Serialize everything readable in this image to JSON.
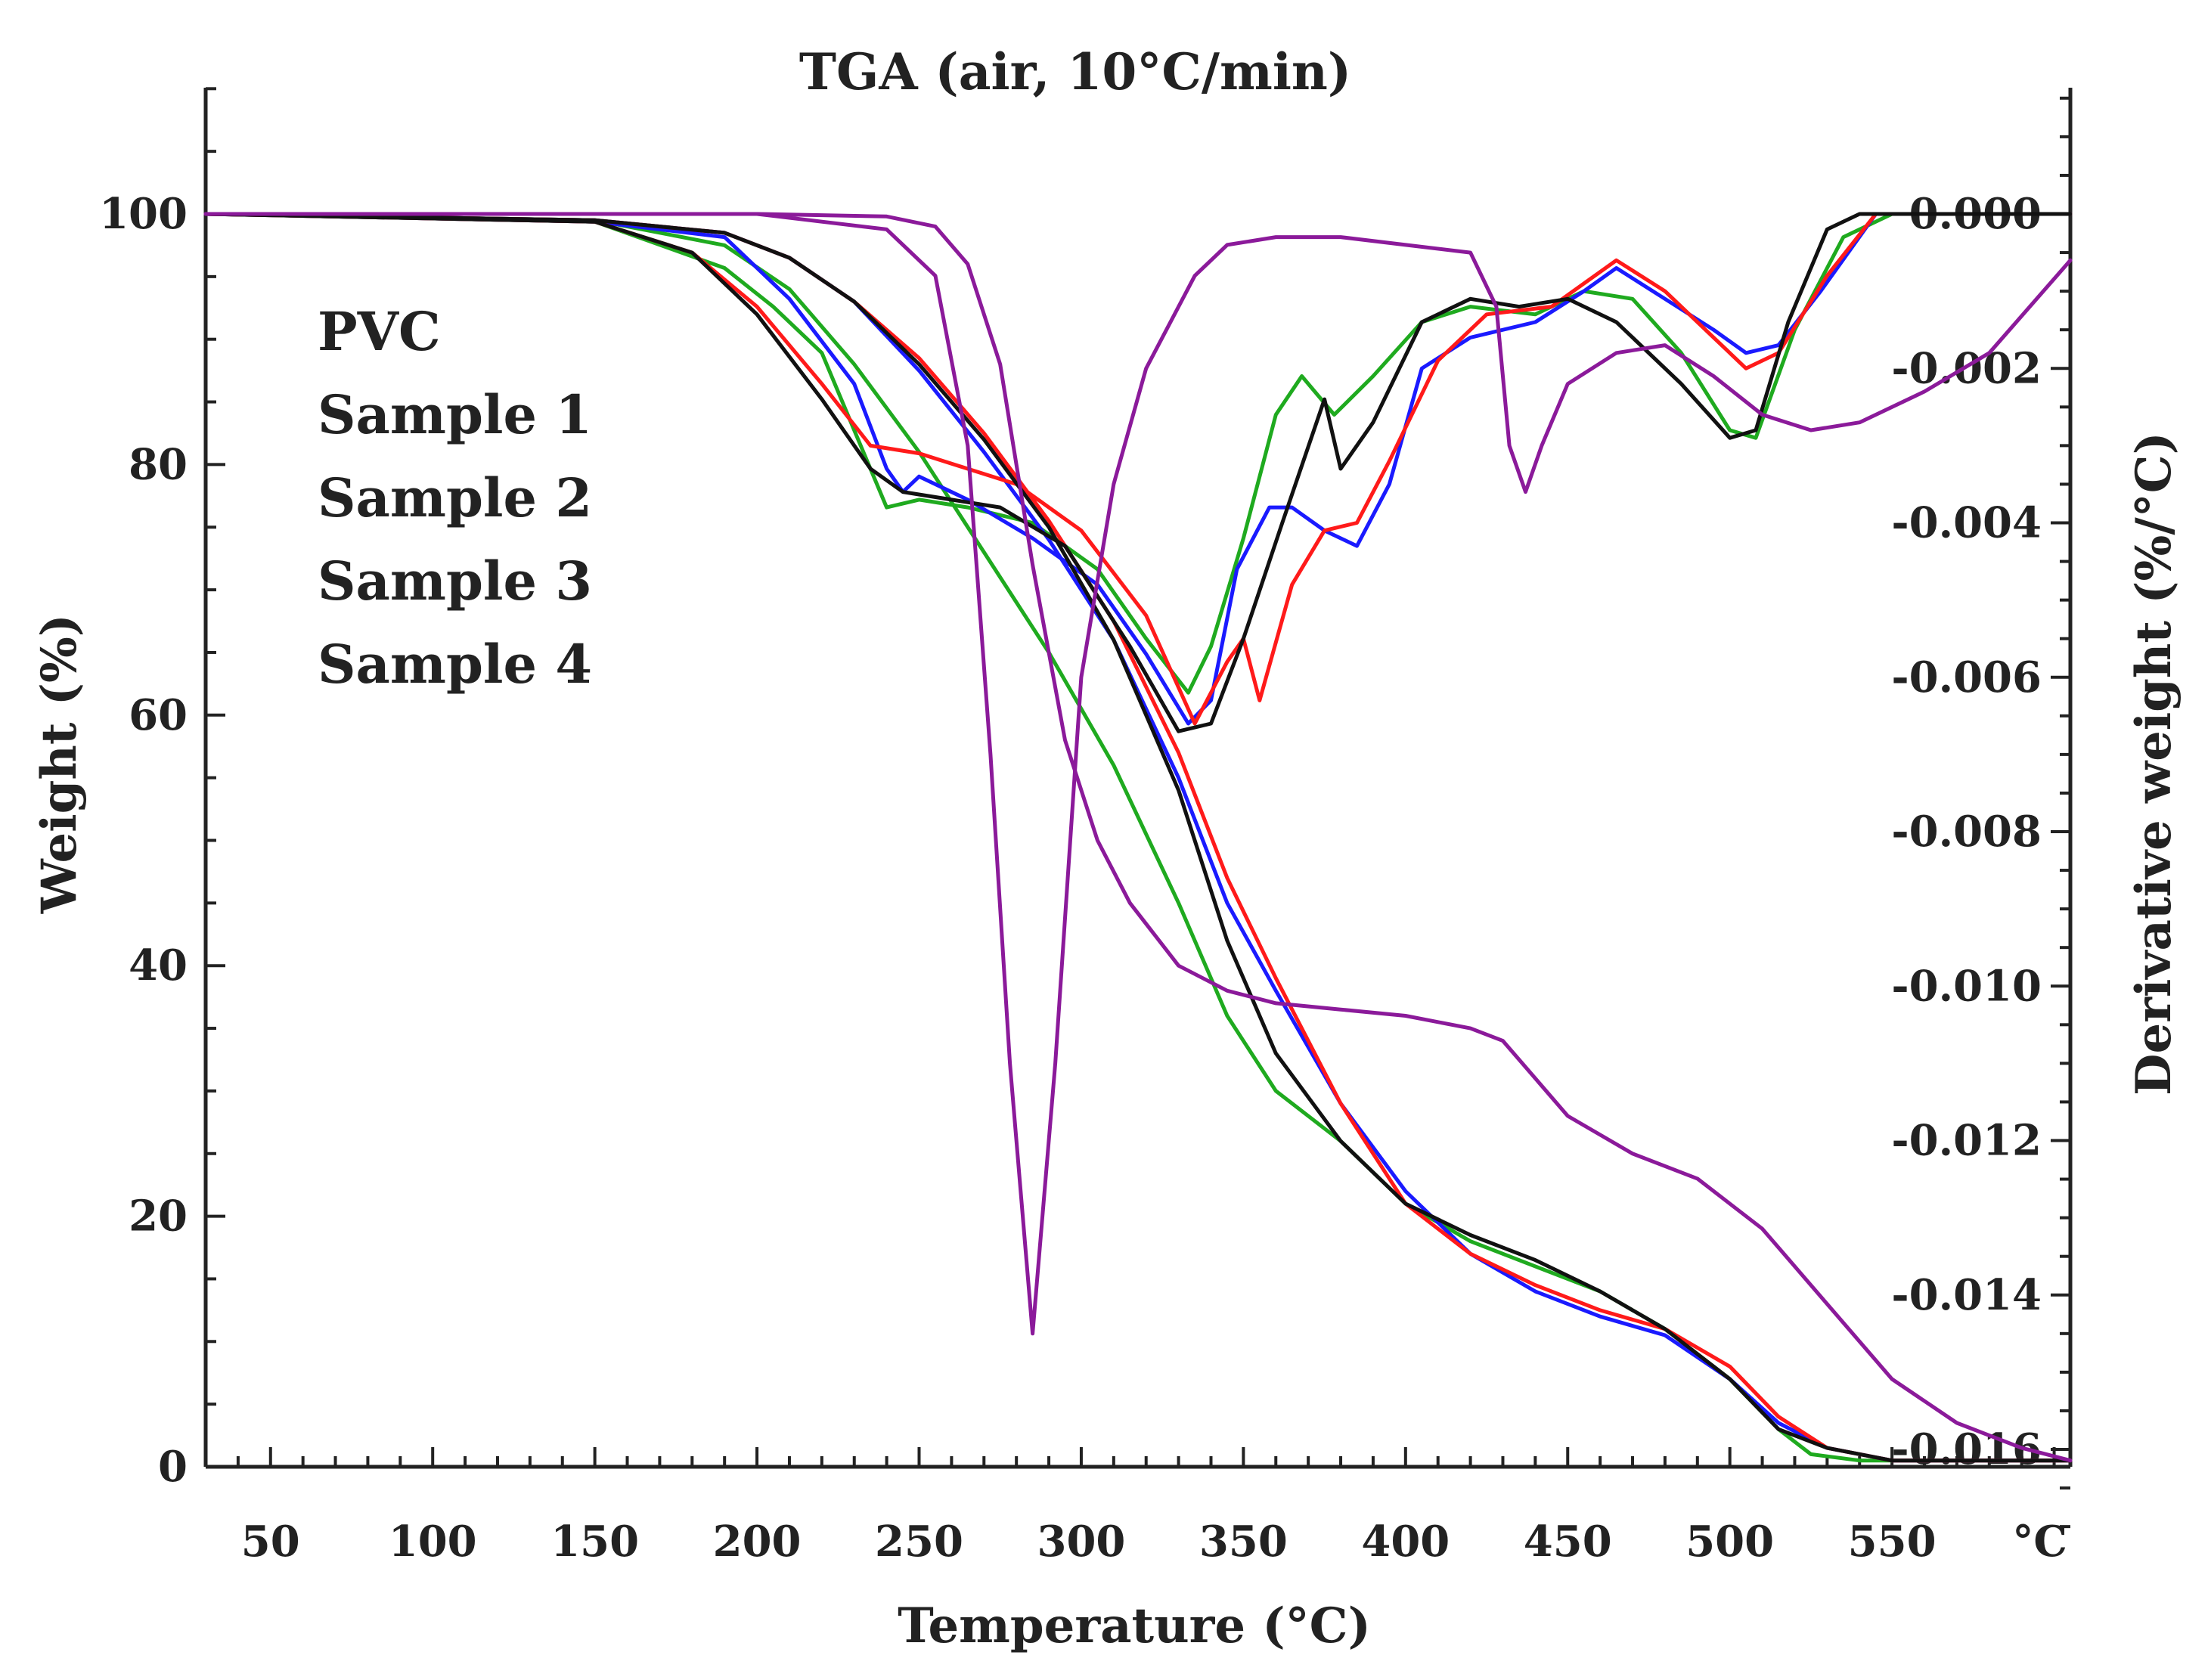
{
  "chart_data": {
    "type": "line",
    "title": "TGA (air, 10°C/min)",
    "xlabel": "Temperature (°C)",
    "ylabel": "Weight (%)",
    "y2label": "Derivative weight (%/°C)",
    "xlim": [
      30,
      605
    ],
    "ylim": [
      0,
      110
    ],
    "y2lim": [
      -0.016,
      0.0016
    ],
    "x_ticks": [
      50,
      100,
      150,
      200,
      250,
      300,
      350,
      400,
      450,
      500,
      550
    ],
    "x_unit_tick": "°C",
    "y_ticks": [
      0,
      20,
      40,
      60,
      80,
      100
    ],
    "y2_ticks": [
      "0.000",
      "-0.002",
      "-0.004",
      "-0.006",
      "-0.008",
      "-0.010",
      "-0.012",
      "-0.014",
      "-0.016"
    ],
    "colors": {
      "PVC": "#8b1a9a",
      "Sample 1": "#1faa1f",
      "Sample 2": "#1a1aff",
      "Sample 3": "#ff1a1a",
      "Sample 4": "#111111"
    },
    "legend": [
      "PVC",
      "Sample 1",
      "Sample 2",
      "Sample 3",
      "Sample 4"
    ],
    "series": [
      {
        "name": "PVC",
        "kind": "weight",
        "axis": "left",
        "points": [
          [
            30,
            100
          ],
          [
            100,
            100
          ],
          [
            200,
            100
          ],
          [
            240,
            99.8
          ],
          [
            255,
            99
          ],
          [
            265,
            96
          ],
          [
            275,
            88
          ],
          [
            285,
            72
          ],
          [
            295,
            58
          ],
          [
            305,
            50
          ],
          [
            315,
            45
          ],
          [
            330,
            40
          ],
          [
            345,
            38
          ],
          [
            360,
            37
          ],
          [
            380,
            36.5
          ],
          [
            400,
            36
          ],
          [
            420,
            35
          ],
          [
            430,
            34
          ],
          [
            440,
            31
          ],
          [
            450,
            28
          ],
          [
            470,
            25
          ],
          [
            490,
            23
          ],
          [
            510,
            19
          ],
          [
            530,
            13
          ],
          [
            550,
            7
          ],
          [
            570,
            3.5
          ],
          [
            590,
            1.5
          ],
          [
            605,
            0.5
          ]
        ]
      },
      {
        "name": "PVC",
        "kind": "derivative",
        "axis": "right",
        "points": [
          [
            30,
            0
          ],
          [
            200,
            0
          ],
          [
            240,
            -0.0002
          ],
          [
            255,
            -0.0008
          ],
          [
            265,
            -0.003
          ],
          [
            272,
            -0.007
          ],
          [
            278,
            -0.011
          ],
          [
            285,
            -0.0145
          ],
          [
            292,
            -0.011
          ],
          [
            300,
            -0.006
          ],
          [
            310,
            -0.0035
          ],
          [
            320,
            -0.002
          ],
          [
            335,
            -0.0008
          ],
          [
            345,
            -0.0004
          ],
          [
            360,
            -0.0003
          ],
          [
            380,
            -0.0003
          ],
          [
            400,
            -0.0004
          ],
          [
            420,
            -0.0005
          ],
          [
            428,
            -0.0012
          ],
          [
            432,
            -0.003
          ],
          [
            437,
            -0.0036
          ],
          [
            442,
            -0.003
          ],
          [
            450,
            -0.0022
          ],
          [
            465,
            -0.0018
          ],
          [
            480,
            -0.0017
          ],
          [
            495,
            -0.0021
          ],
          [
            510,
            -0.0026
          ],
          [
            525,
            -0.0028
          ],
          [
            540,
            -0.0027
          ],
          [
            560,
            -0.0023
          ],
          [
            580,
            -0.0018
          ],
          [
            605,
            -0.0006
          ]
        ]
      },
      {
        "name": "Sample 1",
        "kind": "weight",
        "axis": "left",
        "points": [
          [
            30,
            100
          ],
          [
            150,
            99.5
          ],
          [
            190,
            97.5
          ],
          [
            210,
            94
          ],
          [
            230,
            88
          ],
          [
            250,
            81
          ],
          [
            270,
            73
          ],
          [
            290,
            65
          ],
          [
            310,
            56
          ],
          [
            330,
            45
          ],
          [
            345,
            36
          ],
          [
            360,
            30
          ],
          [
            380,
            26
          ],
          [
            400,
            21
          ],
          [
            420,
            18
          ],
          [
            440,
            16
          ],
          [
            460,
            14
          ],
          [
            480,
            11
          ],
          [
            500,
            7
          ],
          [
            515,
            3
          ],
          [
            525,
            1
          ],
          [
            540,
            0.5
          ],
          [
            605,
            0.5
          ]
        ]
      },
      {
        "name": "Sample 1",
        "kind": "derivative",
        "axis": "right",
        "points": [
          [
            30,
            0
          ],
          [
            150,
            -0.0001
          ],
          [
            190,
            -0.0007
          ],
          [
            205,
            -0.0012
          ],
          [
            220,
            -0.0018
          ],
          [
            230,
            -0.0028
          ],
          [
            240,
            -0.0038
          ],
          [
            250,
            -0.0037
          ],
          [
            265,
            -0.0038
          ],
          [
            285,
            -0.004
          ],
          [
            305,
            -0.0046
          ],
          [
            320,
            -0.0055
          ],
          [
            333,
            -0.0062
          ],
          [
            340,
            -0.0056
          ],
          [
            350,
            -0.0042
          ],
          [
            360,
            -0.0026
          ],
          [
            368,
            -0.0021
          ],
          [
            378,
            -0.0026
          ],
          [
            390,
            -0.0021
          ],
          [
            405,
            -0.0014
          ],
          [
            420,
            -0.0012
          ],
          [
            440,
            -0.0013
          ],
          [
            455,
            -0.001
          ],
          [
            470,
            -0.0011
          ],
          [
            485,
            -0.0018
          ],
          [
            500,
            -0.0028
          ],
          [
            508,
            -0.0029
          ],
          [
            520,
            -0.0015
          ],
          [
            535,
            -0.0003
          ],
          [
            550,
            0
          ],
          [
            605,
            0
          ]
        ]
      },
      {
        "name": "Sample 2",
        "kind": "weight",
        "axis": "left",
        "points": [
          [
            30,
            100
          ],
          [
            150,
            99.5
          ],
          [
            190,
            98.5
          ],
          [
            210,
            96.5
          ],
          [
            230,
            93
          ],
          [
            250,
            87.5
          ],
          [
            270,
            81
          ],
          [
            290,
            74
          ],
          [
            310,
            66
          ],
          [
            330,
            55
          ],
          [
            345,
            45
          ],
          [
            360,
            38
          ],
          [
            380,
            29
          ],
          [
            400,
            22
          ],
          [
            420,
            17
          ],
          [
            440,
            14
          ],
          [
            460,
            12
          ],
          [
            480,
            10.5
          ],
          [
            500,
            7
          ],
          [
            515,
            3.5
          ],
          [
            530,
            1.5
          ],
          [
            550,
            0.5
          ],
          [
            605,
            0.5
          ]
        ]
      },
      {
        "name": "Sample 2",
        "kind": "derivative",
        "axis": "right",
        "points": [
          [
            30,
            0
          ],
          [
            150,
            -0.0001
          ],
          [
            190,
            -0.0003
          ],
          [
            210,
            -0.0011
          ],
          [
            230,
            -0.0022
          ],
          [
            240,
            -0.0033
          ],
          [
            245,
            -0.0036
          ],
          [
            250,
            -0.0034
          ],
          [
            265,
            -0.0037
          ],
          [
            285,
            -0.0042
          ],
          [
            305,
            -0.0048
          ],
          [
            320,
            -0.0057
          ],
          [
            333,
            -0.0066
          ],
          [
            340,
            -0.0063
          ],
          [
            348,
            -0.0046
          ],
          [
            358,
            -0.0038
          ],
          [
            365,
            -0.0038
          ],
          [
            375,
            -0.0041
          ],
          [
            385,
            -0.0043
          ],
          [
            395,
            -0.0035
          ],
          [
            405,
            -0.002
          ],
          [
            420,
            -0.0016
          ],
          [
            440,
            -0.0014
          ],
          [
            455,
            -0.001
          ],
          [
            465,
            -0.0007
          ],
          [
            480,
            -0.0011
          ],
          [
            495,
            -0.0015
          ],
          [
            505,
            -0.0018
          ],
          [
            515,
            -0.0017
          ],
          [
            528,
            -0.001
          ],
          [
            545,
            0
          ],
          [
            605,
            0
          ]
        ]
      },
      {
        "name": "Sample 3",
        "kind": "weight",
        "axis": "left",
        "points": [
          [
            30,
            100
          ],
          [
            150,
            99.5
          ],
          [
            190,
            98.5
          ],
          [
            210,
            96.5
          ],
          [
            230,
            93
          ],
          [
            250,
            88.5
          ],
          [
            270,
            82.5
          ],
          [
            290,
            75.5
          ],
          [
            310,
            67.5
          ],
          [
            330,
            57
          ],
          [
            345,
            47
          ],
          [
            360,
            39
          ],
          [
            380,
            29
          ],
          [
            400,
            21
          ],
          [
            420,
            17
          ],
          [
            440,
            14.5
          ],
          [
            460,
            12.5
          ],
          [
            480,
            11
          ],
          [
            500,
            8
          ],
          [
            515,
            4
          ],
          [
            530,
            1.5
          ],
          [
            550,
            0.5
          ],
          [
            605,
            0.5
          ]
        ]
      },
      {
        "name": "Sample 3",
        "kind": "derivative",
        "axis": "right",
        "points": [
          [
            30,
            0
          ],
          [
            150,
            -0.0001
          ],
          [
            180,
            -0.0005
          ],
          [
            200,
            -0.0012
          ],
          [
            220,
            -0.0022
          ],
          [
            235,
            -0.003
          ],
          [
            250,
            -0.0031
          ],
          [
            265,
            -0.0033
          ],
          [
            280,
            -0.0035
          ],
          [
            300,
            -0.0041
          ],
          [
            320,
            -0.0052
          ],
          [
            335,
            -0.0066
          ],
          [
            345,
            -0.0058
          ],
          [
            350,
            -0.0055
          ],
          [
            355,
            -0.0063
          ],
          [
            365,
            -0.0048
          ],
          [
            375,
            -0.0041
          ],
          [
            385,
            -0.004
          ],
          [
            395,
            -0.0032
          ],
          [
            410,
            -0.0019
          ],
          [
            425,
            -0.0013
          ],
          [
            445,
            -0.0012
          ],
          [
            465,
            -0.0006
          ],
          [
            480,
            -0.001
          ],
          [
            495,
            -0.0016
          ],
          [
            505,
            -0.002
          ],
          [
            515,
            -0.0018
          ],
          [
            530,
            -0.0008
          ],
          [
            545,
            0
          ],
          [
            605,
            0
          ]
        ]
      },
      {
        "name": "Sample 4",
        "kind": "weight",
        "axis": "left",
        "points": [
          [
            30,
            100
          ],
          [
            150,
            99.5
          ],
          [
            190,
            98.5
          ],
          [
            210,
            96.5
          ],
          [
            230,
            93
          ],
          [
            250,
            88
          ],
          [
            270,
            82
          ],
          [
            290,
            75
          ],
          [
            310,
            66
          ],
          [
            330,
            54
          ],
          [
            345,
            42
          ],
          [
            360,
            33
          ],
          [
            380,
            26
          ],
          [
            400,
            21
          ],
          [
            420,
            18.5
          ],
          [
            440,
            16.5
          ],
          [
            460,
            14
          ],
          [
            480,
            11
          ],
          [
            500,
            7
          ],
          [
            515,
            3
          ],
          [
            530,
            1.5
          ],
          [
            550,
            0.5
          ],
          [
            605,
            0.5
          ]
        ]
      },
      {
        "name": "Sample 4",
        "kind": "derivative",
        "axis": "right",
        "points": [
          [
            30,
            0
          ],
          [
            150,
            -0.0001
          ],
          [
            180,
            -0.0005
          ],
          [
            200,
            -0.0013
          ],
          [
            220,
            -0.0024
          ],
          [
            235,
            -0.0033
          ],
          [
            245,
            -0.0036
          ],
          [
            260,
            -0.0037
          ],
          [
            275,
            -0.0038
          ],
          [
            295,
            -0.0043
          ],
          [
            315,
            -0.0056
          ],
          [
            330,
            -0.0067
          ],
          [
            340,
            -0.0066
          ],
          [
            350,
            -0.0055
          ],
          [
            362,
            -0.004
          ],
          [
            375,
            -0.0024
          ],
          [
            380,
            -0.0033
          ],
          [
            390,
            -0.0027
          ],
          [
            405,
            -0.0014
          ],
          [
            420,
            -0.0011
          ],
          [
            435,
            -0.0012
          ],
          [
            450,
            -0.0011
          ],
          [
            465,
            -0.0014
          ],
          [
            485,
            -0.0022
          ],
          [
            500,
            -0.0029
          ],
          [
            508,
            -0.0028
          ],
          [
            518,
            -0.0014
          ],
          [
            530,
            -0.0002
          ],
          [
            540,
            0
          ],
          [
            605,
            0
          ]
        ]
      }
    ]
  }
}
